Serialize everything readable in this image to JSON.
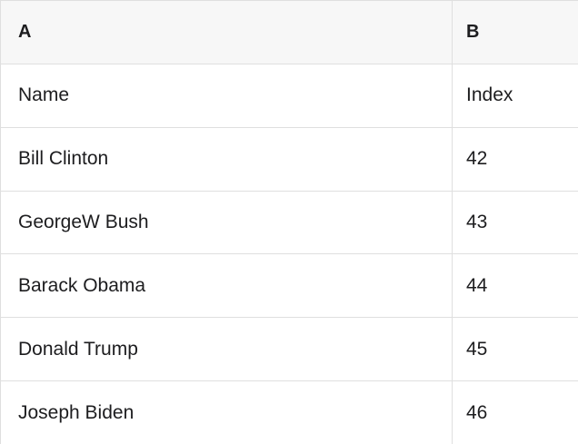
{
  "table": {
    "columns": [
      {
        "id": "A",
        "label": "A"
      },
      {
        "id": "B",
        "label": "B"
      }
    ],
    "rows": [
      {
        "a": "Name",
        "b": "Index"
      },
      {
        "a": "Bill Clinton",
        "b": "42"
      },
      {
        "a": "GeorgeW Bush",
        "b": "43"
      },
      {
        "a": "Barack Obama",
        "b": "44"
      },
      {
        "a": "Donald Trump",
        "b": "45"
      },
      {
        "a": "Joseph Biden",
        "b": "46"
      }
    ],
    "colors": {
      "header_bg": "#f7f7f7",
      "border": "#dfdfdf",
      "cell_bg": "#ffffff",
      "text": "#1d1d1f"
    }
  }
}
